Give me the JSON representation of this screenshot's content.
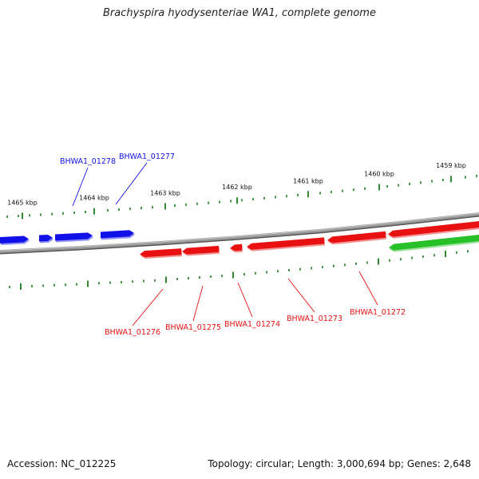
{
  "title": "Brachyspira hyodysenteriae WA1, complete genome",
  "footer": {
    "accession": "Accession: NC_012225",
    "summary": "Topology: circular; Length: 3,000,694 bp; Genes: 2,648"
  },
  "colors": {
    "forward_gene": "#1010e8",
    "reverse_gene": "#e81010",
    "other_gene": "#28c028",
    "tick": "#1a7a1a",
    "backbone": "#8a8a8a"
  },
  "kbp_labels": [
    "1465 kbp",
    "1464 kbp",
    "1463 kbp",
    "1462 kbp",
    "1461 kbp",
    "1460 kbp",
    "1459 kbp"
  ],
  "forward_genes": [
    {
      "label": "BHWA1_01278"
    },
    {
      "label": "BHWA1_01277"
    }
  ],
  "reverse_genes": [
    {
      "label": "BHWA1_01276"
    },
    {
      "label": "BHWA1_01275"
    },
    {
      "label": "BHWA1_01274"
    },
    {
      "label": "BHWA1_01273"
    },
    {
      "label": "BHWA1_01272"
    }
  ]
}
